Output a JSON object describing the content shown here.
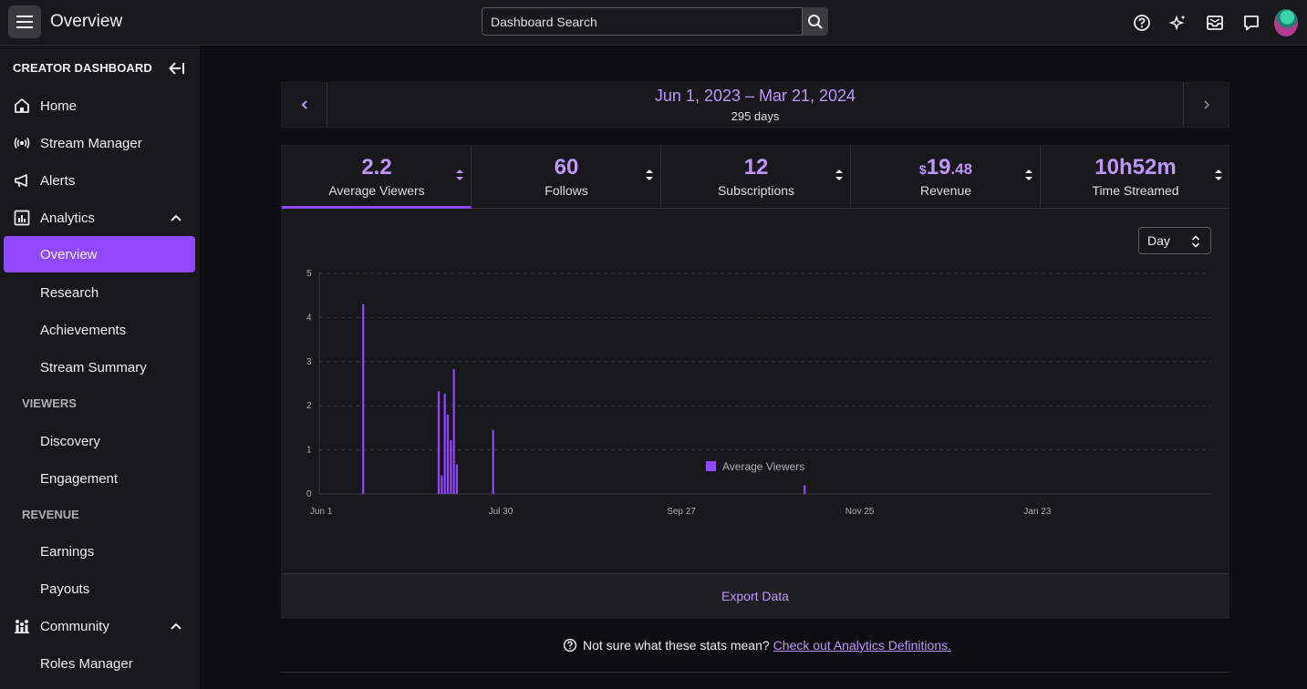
{
  "header": {
    "title": "Overview",
    "search_placeholder": "Dashboard Search"
  },
  "sidebar": {
    "heading": "CREATOR DASHBOARD",
    "items": {
      "home": "Home",
      "stream_manager": "Stream Manager",
      "alerts": "Alerts",
      "analytics": "Analytics",
      "overview": "Overview",
      "research": "Research",
      "achievements": "Achievements",
      "stream_summary": "Stream Summary",
      "discovery": "Discovery",
      "engagement": "Engagement",
      "earnings": "Earnings",
      "payouts": "Payouts",
      "community": "Community",
      "roles_manager": "Roles Manager"
    },
    "sections": {
      "viewers": "VIEWERS",
      "revenue": "REVENUE"
    }
  },
  "date_range": {
    "label": "Jun 1, 2023 – Mar 21, 2024",
    "days": "295 days"
  },
  "stats": {
    "average_viewers": {
      "value": "2.2",
      "label": "Average Viewers"
    },
    "follows": {
      "value": "60",
      "label": "Follows"
    },
    "subscriptions": {
      "value": "12",
      "label": "Subscriptions"
    },
    "revenue": {
      "currency": "$",
      "whole": "19",
      "cents": ".48",
      "label": "Revenue"
    },
    "time_streamed": {
      "value": "10h52m",
      "label": "Time Streamed"
    }
  },
  "granularity": {
    "selected": "Day"
  },
  "chart_data": {
    "type": "bar",
    "title": "",
    "xlabel": "",
    "ylabel": "",
    "ylim": [
      0,
      5
    ],
    "y_ticks": [
      "0",
      "1",
      "2",
      "3",
      "4",
      "5"
    ],
    "x_ticks": [
      "Jun 1",
      "Jul 30",
      "Sep 27",
      "Nov 25",
      "Jan 23"
    ],
    "x_tick_days": [
      0,
      59,
      118,
      177,
      236
    ],
    "x_range_days": [
      0,
      295
    ],
    "grid": true,
    "legend": {
      "position": "bottom-center"
    },
    "series": [
      {
        "name": "Average Viewers",
        "color": "#9147ff",
        "points": [
          {
            "day": 14.5,
            "value": 4.3
          },
          {
            "day": 39.5,
            "value": 2.33
          },
          {
            "day": 40.5,
            "value": 0.42
          },
          {
            "day": 41.5,
            "value": 2.27
          },
          {
            "day": 42.5,
            "value": 1.8
          },
          {
            "day": 43.5,
            "value": 1.22
          },
          {
            "day": 44.5,
            "value": 2.83
          },
          {
            "day": 45.5,
            "value": 0.67
          },
          {
            "day": 57.5,
            "value": 1.45
          },
          {
            "day": 160.5,
            "value": 0.2
          }
        ]
      }
    ]
  },
  "actions": {
    "export": "Export Data"
  },
  "footnote": {
    "text": "Not sure what these stats mean?",
    "link": "Check out Analytics Definitions."
  },
  "colors": {
    "accent": "#9147ff",
    "accent_text": "#bf94ff",
    "background": "#0e0e10",
    "panel": "#18181b"
  }
}
